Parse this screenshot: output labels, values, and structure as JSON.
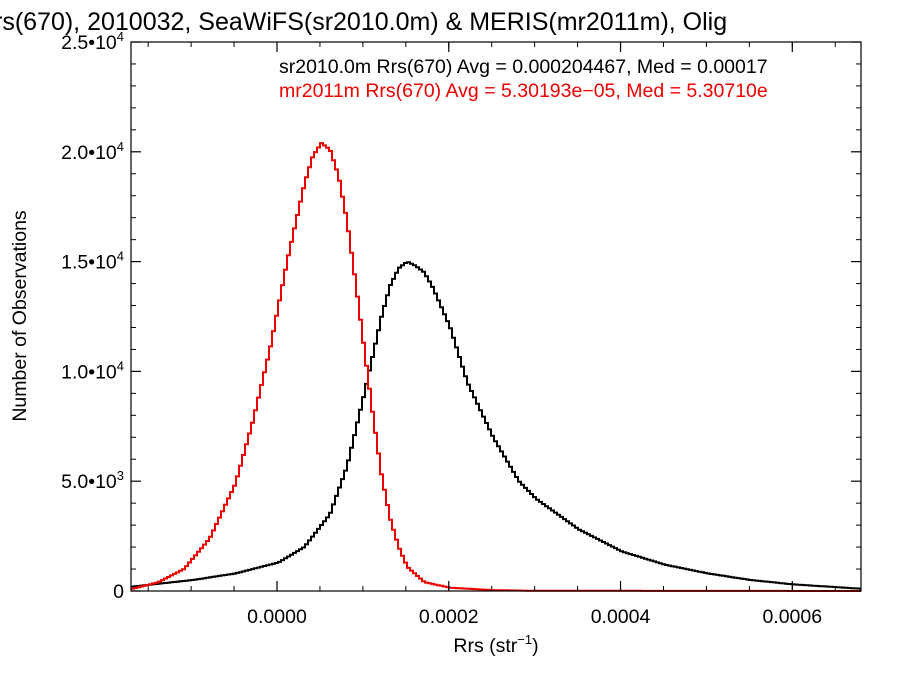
{
  "chart_data": {
    "type": "line",
    "title": "rs(670), 2010032, SeaWiFS(sr2010.0m) & MERIS(mr2011m), Olig",
    "xlabel": "Rrs (str",
    "xlabel_superscript": "−1",
    "xlabel_suffix": ")",
    "ylabel": "Number of Observations",
    "xlim": [
      -0.00017,
      0.00068
    ],
    "ylim": [
      0,
      25000
    ],
    "step": true,
    "grid": false,
    "x_ticks": [
      {
        "value": 0.0,
        "label": "0.0000"
      },
      {
        "value": 0.0002,
        "label": "0.0002"
      },
      {
        "value": 0.0004,
        "label": "0.0004"
      },
      {
        "value": 0.0006,
        "label": "0.0006"
      }
    ],
    "y_ticks": [
      {
        "value": 0,
        "label": "0",
        "exp": ""
      },
      {
        "value": 5000,
        "label": "5.0•10",
        "exp": "3"
      },
      {
        "value": 10000,
        "label": "1.0•10",
        "exp": "4"
      },
      {
        "value": 15000,
        "label": "1.5•10",
        "exp": "4"
      },
      {
        "value": 20000,
        "label": "2.0•10",
        "exp": "4"
      },
      {
        "value": 25000,
        "label": "2.5•10",
        "exp": "4"
      }
    ],
    "annotations": [
      {
        "text": "sr2010.0m Rrs(670) Avg = 0.000204467, Med = 0.00017",
        "color": "#000000"
      },
      {
        "text": "mr2011m Rrs(670) Avg = 5.30193e−05, Med = 5.30710e",
        "color": "#ee0000"
      }
    ],
    "series": [
      {
        "color": "#000000",
        "x": [
          -0.00017,
          -0.0001,
          -5e-05,
          0.0,
          3e-05,
          6e-05,
          8e-05,
          0.0001,
          0.00012,
          0.00013,
          0.00014,
          0.00015,
          0.00016,
          0.00017,
          0.00018,
          0.0002,
          0.00022,
          0.00025,
          0.00028,
          0.0003,
          0.00035,
          0.0004,
          0.00045,
          0.0005,
          0.00055,
          0.0006,
          0.00068
        ],
        "y": [
          200,
          500,
          800,
          1300,
          2000,
          3500,
          5700,
          9000,
          12500,
          13900,
          14700,
          15000,
          14800,
          14500,
          13800,
          12000,
          9500,
          7000,
          5000,
          4200,
          2800,
          1800,
          1200,
          800,
          500,
          300,
          100
        ]
      },
      {
        "color": "#ee0000",
        "x": [
          -0.00017,
          -0.00014,
          -0.00011,
          -8e-05,
          -5e-05,
          -3e-05,
          -1e-05,
          1e-05,
          3e-05,
          4e-05,
          5e-05,
          6e-05,
          7e-05,
          8e-05,
          9e-05,
          0.0001,
          0.00011,
          0.00012,
          0.00013,
          0.00014,
          0.00015,
          0.00017,
          0.0002,
          0.00025,
          0.0003,
          0.00068
        ],
        "y": [
          100,
          400,
          1000,
          2400,
          4900,
          7700,
          11000,
          15000,
          18500,
          19800,
          20400,
          20100,
          18900,
          16800,
          14000,
          11000,
          8000,
          5300,
          3300,
          2000,
          1100,
          400,
          150,
          40,
          10,
          0
        ]
      }
    ]
  }
}
